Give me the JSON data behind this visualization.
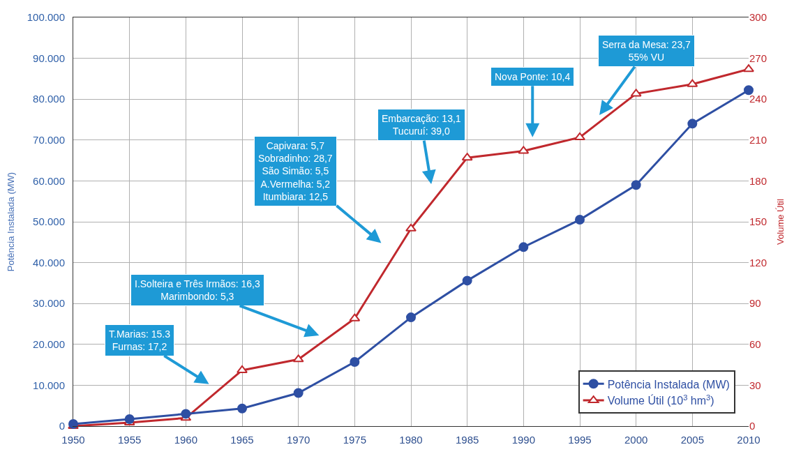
{
  "chart_data": {
    "type": "line",
    "x": [
      1950,
      1955,
      1960,
      1965,
      1970,
      1975,
      1980,
      1985,
      1990,
      1995,
      2000,
      2005,
      2010
    ],
    "series": [
      {
        "name": "Potência Instalada (MW)",
        "color": "#2e4fa3",
        "marker": "circle",
        "values": [
          500,
          1700,
          3000,
          4300,
          8100,
          15700,
          26600,
          35600,
          43800,
          50500,
          59000,
          74000,
          82200
        ]
      },
      {
        "name": "Volume Útil (10$^{3}$ hm$^{3}$)",
        "color": "#c0282d",
        "marker": "triangle",
        "axis": "y2",
        "values": [
          0,
          2.6,
          6,
          41,
          49,
          79,
          145,
          197,
          202,
          212,
          244,
          251,
          262
        ]
      }
    ],
    "ylabel": "Potência Instalada (MW)",
    "y2label": "Volume Útil",
    "xlim": [
      1950,
      2010
    ],
    "xticks": [
      1950,
      1955,
      1960,
      1965,
      1970,
      1975,
      1980,
      1985,
      1990,
      1995,
      2000,
      2005,
      2010
    ],
    "ylim": [
      0,
      100000
    ],
    "yticks": [
      0,
      {
        "value": 10000,
        "label": "10.000"
      },
      {
        "value": 20000,
        "label": "20.000"
      },
      {
        "value": 30000,
        "label": "30.000"
      },
      {
        "value": 40000,
        "label": "40.000"
      },
      {
        "value": 50000,
        "label": "50.000"
      },
      {
        "value": 60000,
        "label": "60.000"
      },
      {
        "value": 70000,
        "label": "70.000"
      },
      {
        "value": 80000,
        "label": "80.000"
      },
      {
        "value": 90000,
        "label": "90.000"
      },
      {
        "value": 100000,
        "label": "100.000"
      }
    ],
    "y2lim": [
      0,
      300
    ],
    "y2ticks": [
      0,
      30,
      60,
      90,
      120,
      150,
      180,
      210,
      240,
      270,
      300
    ],
    "annotations": [
      "T.Marias: 15.3\nFurnas: 17,2",
      "I.Solteira e Três Irmãos: 16,3\nMarimbondo: 5,3",
      "Capivara: 5,7\nSobradinho: 28,7\nSão Simão: 5,5\nA.Vermelha: 5,2\nItumbiara: 12,5",
      "Embarcação: 13,1\nTucuruí: 39,0",
      "Nova Ponte: 10,4",
      "Serra da Mesa: 23,7\n55% VU"
    ],
    "grid": true,
    "legend": "bottom right",
    "line_style": "solid"
  }
}
